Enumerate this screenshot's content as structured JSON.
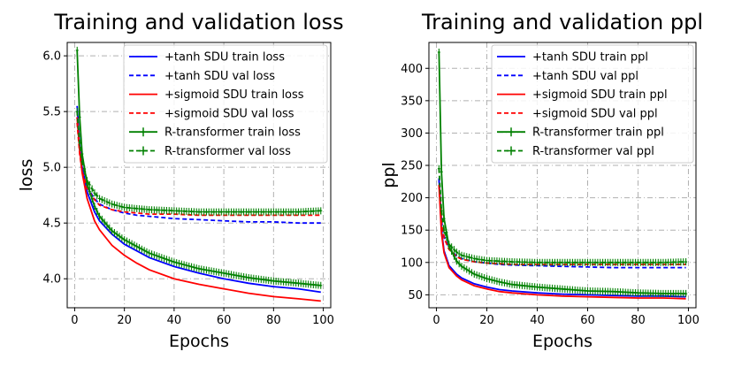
{
  "chart_data": [
    {
      "type": "line",
      "title": "Training and validation loss",
      "xlabel": "Epochs",
      "ylabel": "loss",
      "xlim": [
        -3,
        103
      ],
      "ylim": [
        3.74,
        6.12
      ],
      "xticks": [
        0,
        20,
        40,
        60,
        80,
        100
      ],
      "yticks": [
        4.0,
        4.5,
        5.0,
        5.5,
        6.0
      ],
      "ytick_labels": [
        "4.0",
        "4.5",
        "5.0",
        "5.5",
        "6.0"
      ],
      "xtick_labels": [
        "0",
        "20",
        "40",
        "60",
        "80",
        "100"
      ],
      "grid": true,
      "legend_position": "top-right",
      "series": [
        {
          "name": "+tanh SDU train loss",
          "color": "#0000ff",
          "style": "solid",
          "points": [
            [
              1,
              5.55
            ],
            [
              2,
              5.2
            ],
            [
              3,
              5.0
            ],
            [
              5,
              4.78
            ],
            [
              8,
              4.6
            ],
            [
              10,
              4.52
            ],
            [
              15,
              4.4
            ],
            [
              20,
              4.31
            ],
            [
              25,
              4.25
            ],
            [
              30,
              4.19
            ],
            [
              40,
              4.11
            ],
            [
              50,
              4.05
            ],
            [
              60,
              4.0
            ],
            [
              70,
              3.96
            ],
            [
              80,
              3.93
            ],
            [
              90,
              3.91
            ],
            [
              99,
              3.88
            ]
          ]
        },
        {
          "name": "+tanh SDU val loss",
          "color": "#0000ff",
          "style": "dashed",
          "points": [
            [
              1,
              5.45
            ],
            [
              2,
              5.15
            ],
            [
              3,
              4.98
            ],
            [
              5,
              4.82
            ],
            [
              8,
              4.72
            ],
            [
              10,
              4.67
            ],
            [
              15,
              4.62
            ],
            [
              20,
              4.59
            ],
            [
              25,
              4.57
            ],
            [
              30,
              4.56
            ],
            [
              40,
              4.54
            ],
            [
              50,
              4.53
            ],
            [
              60,
              4.52
            ],
            [
              70,
              4.51
            ],
            [
              80,
              4.51
            ],
            [
              90,
              4.5
            ],
            [
              99,
              4.5
            ]
          ]
        },
        {
          "name": "+sigmoid SDU train loss",
          "color": "#ff0000",
          "style": "solid",
          "points": [
            [
              1,
              5.45
            ],
            [
              2,
              5.15
            ],
            [
              3,
              4.95
            ],
            [
              5,
              4.72
            ],
            [
              8,
              4.52
            ],
            [
              10,
              4.44
            ],
            [
              15,
              4.3
            ],
            [
              20,
              4.21
            ],
            [
              25,
              4.14
            ],
            [
              30,
              4.08
            ],
            [
              40,
              4.0
            ],
            [
              50,
              3.95
            ],
            [
              60,
              3.91
            ],
            [
              70,
              3.87
            ],
            [
              80,
              3.84
            ],
            [
              90,
              3.82
            ],
            [
              99,
              3.8
            ]
          ]
        },
        {
          "name": "+sigmoid SDU val loss",
          "color": "#ff0000",
          "style": "dashed",
          "points": [
            [
              1,
              5.4
            ],
            [
              2,
              5.12
            ],
            [
              3,
              4.96
            ],
            [
              5,
              4.81
            ],
            [
              8,
              4.71
            ],
            [
              10,
              4.66
            ],
            [
              15,
              4.62
            ],
            [
              20,
              4.6
            ],
            [
              25,
              4.59
            ],
            [
              30,
              4.58
            ],
            [
              40,
              4.58
            ],
            [
              50,
              4.57
            ],
            [
              60,
              4.57
            ],
            [
              70,
              4.57
            ],
            [
              80,
              4.57
            ],
            [
              90,
              4.57
            ],
            [
              99,
              4.57
            ]
          ]
        },
        {
          "name": "R-transformer train loss",
          "color": "#008000",
          "style": "solid",
          "marker": "plus",
          "points": [
            [
              1,
              6.05
            ],
            [
              2,
              5.45
            ],
            [
              3,
              5.12
            ],
            [
              5,
              4.85
            ],
            [
              8,
              4.65
            ],
            [
              10,
              4.56
            ],
            [
              15,
              4.43
            ],
            [
              20,
              4.35
            ],
            [
              25,
              4.29
            ],
            [
              30,
              4.23
            ],
            [
              40,
              4.15
            ],
            [
              50,
              4.09
            ],
            [
              60,
              4.05
            ],
            [
              70,
              4.01
            ],
            [
              80,
              3.98
            ],
            [
              90,
              3.96
            ],
            [
              99,
              3.94
            ]
          ]
        },
        {
          "name": "R-transformer val loss",
          "color": "#008000",
          "style": "dashed",
          "marker": "plus",
          "points": [
            [
              1,
              5.5
            ],
            [
              2,
              5.22
            ],
            [
              3,
              5.05
            ],
            [
              5,
              4.88
            ],
            [
              8,
              4.77
            ],
            [
              10,
              4.72
            ],
            [
              15,
              4.67
            ],
            [
              20,
              4.64
            ],
            [
              25,
              4.63
            ],
            [
              30,
              4.62
            ],
            [
              40,
              4.61
            ],
            [
              50,
              4.6
            ],
            [
              60,
              4.6
            ],
            [
              70,
              4.6
            ],
            [
              80,
              4.6
            ],
            [
              90,
              4.6
            ],
            [
              99,
              4.61
            ]
          ]
        }
      ]
    },
    {
      "type": "line",
      "title": "Training and validation ppl",
      "xlabel": "Epochs",
      "ylabel": "ppl",
      "xlim": [
        -3,
        103
      ],
      "ylim": [
        30,
        440
      ],
      "xticks": [
        0,
        20,
        40,
        60,
        80,
        100
      ],
      "yticks": [
        50,
        100,
        150,
        200,
        250,
        300,
        350,
        400
      ],
      "ytick_labels": [
        "50",
        "100",
        "150",
        "200",
        "250",
        "300",
        "350",
        "400"
      ],
      "xtick_labels": [
        "0",
        "20",
        "40",
        "60",
        "80",
        "100"
      ],
      "grid": true,
      "legend_position": "top-right",
      "series": [
        {
          "name": "+tanh SDU train ppl",
          "color": "#0000ff",
          "style": "solid",
          "points": [
            [
              1,
              230
            ],
            [
              2,
              150
            ],
            [
              3,
              118
            ],
            [
              5,
              95
            ],
            [
              8,
              82
            ],
            [
              10,
              76
            ],
            [
              15,
              67
            ],
            [
              20,
              62
            ],
            [
              25,
              58
            ],
            [
              30,
              56
            ],
            [
              40,
              53
            ],
            [
              50,
              51
            ],
            [
              60,
              50
            ],
            [
              70,
              49
            ],
            [
              80,
              48
            ],
            [
              90,
              48
            ],
            [
              99,
              47
            ]
          ]
        },
        {
          "name": "+tanh SDU val ppl",
          "color": "#0000ff",
          "style": "dashed",
          "points": [
            [
              1,
              230
            ],
            [
              2,
              165
            ],
            [
              3,
              140
            ],
            [
              5,
              122
            ],
            [
              8,
              110
            ],
            [
              10,
              106
            ],
            [
              15,
              101
            ],
            [
              20,
              99
            ],
            [
              25,
              97
            ],
            [
              30,
              96
            ],
            [
              40,
              95
            ],
            [
              50,
              94
            ],
            [
              60,
              93
            ],
            [
              70,
              92
            ],
            [
              80,
              92
            ],
            [
              90,
              92
            ],
            [
              99,
              92
            ]
          ]
        },
        {
          "name": "+sigmoid SDU train ppl",
          "color": "#ff0000",
          "style": "solid",
          "points": [
            [
              1,
              220
            ],
            [
              2,
              145
            ],
            [
              3,
              115
            ],
            [
              5,
              92
            ],
            [
              8,
              79
            ],
            [
              10,
              73
            ],
            [
              15,
              64
            ],
            [
              20,
              59
            ],
            [
              25,
              55
            ],
            [
              30,
              53
            ],
            [
              40,
              50
            ],
            [
              50,
              48
            ],
            [
              60,
              47
            ],
            [
              70,
              46
            ],
            [
              80,
              45
            ],
            [
              90,
              45
            ],
            [
              99,
              44
            ]
          ]
        },
        {
          "name": "+sigmoid SDU val ppl",
          "color": "#ff0000",
          "style": "dashed",
          "points": [
            [
              1,
              220
            ],
            [
              2,
              160
            ],
            [
              3,
              138
            ],
            [
              5,
              120
            ],
            [
              8,
              109
            ],
            [
              10,
              105
            ],
            [
              15,
              101
            ],
            [
              20,
              99
            ],
            [
              25,
              98
            ],
            [
              30,
              97
            ],
            [
              40,
              97
            ],
            [
              50,
              97
            ],
            [
              60,
              97
            ],
            [
              70,
              97
            ],
            [
              80,
              97
            ],
            [
              90,
              97
            ],
            [
              99,
              97
            ]
          ]
        },
        {
          "name": "R-transformer train ppl",
          "color": "#008000",
          "style": "solid",
          "marker": "plus",
          "points": [
            [
              1,
              425
            ],
            [
              2,
              240
            ],
            [
              3,
              168
            ],
            [
              5,
              125
            ],
            [
              8,
              102
            ],
            [
              10,
              94
            ],
            [
              15,
              82
            ],
            [
              20,
              75
            ],
            [
              25,
              70
            ],
            [
              30,
              66
            ],
            [
              40,
              62
            ],
            [
              50,
              59
            ],
            [
              60,
              56
            ],
            [
              70,
              55
            ],
            [
              80,
              53
            ],
            [
              90,
              52
            ],
            [
              99,
              52
            ]
          ]
        },
        {
          "name": "R-transformer val ppl",
          "color": "#008000",
          "style": "dashed",
          "marker": "plus",
          "points": [
            [
              1,
              245
            ],
            [
              2,
              180
            ],
            [
              3,
              150
            ],
            [
              5,
              128
            ],
            [
              8,
              116
            ],
            [
              10,
              111
            ],
            [
              15,
              106
            ],
            [
              20,
              103
            ],
            [
              25,
              102
            ],
            [
              30,
              101
            ],
            [
              40,
              100
            ],
            [
              50,
              100
            ],
            [
              60,
              100
            ],
            [
              70,
              100
            ],
            [
              80,
              100
            ],
            [
              90,
              100
            ],
            [
              99,
              101
            ]
          ]
        }
      ]
    }
  ]
}
